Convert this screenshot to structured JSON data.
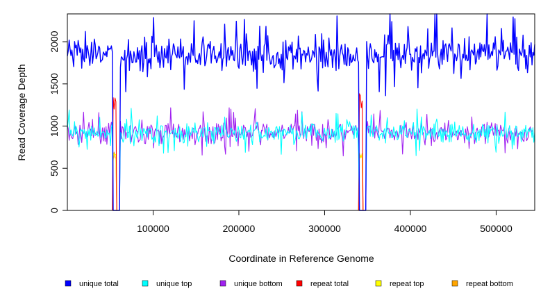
{
  "chart_data": {
    "type": "line",
    "xlabel": "Coordinate in Reference Genome",
    "ylabel": "Read Coverage Depth",
    "xlim": [
      0,
      545000
    ],
    "ylim": [
      0,
      2330
    ],
    "x_ticks": [
      100000,
      200000,
      300000,
      400000,
      500000
    ],
    "x_tick_labels": [
      "100000",
      "200000",
      "300000",
      "400000",
      "500000"
    ],
    "y_ticks": [
      0,
      500,
      1000,
      1500,
      2000
    ],
    "y_tick_labels": [
      "0",
      "500",
      "1000",
      "1500",
      "2000"
    ],
    "repeat_regions": [
      {
        "start": 53000,
        "end": 57000
      },
      {
        "start": 340000,
        "end": 344000
      }
    ],
    "gaps": [
      {
        "start": 57000,
        "end": 61000
      },
      {
        "start": 344000,
        "end": 348000
      }
    ],
    "series": [
      {
        "name": "unique total",
        "color": "#0000ff",
        "mean": 1850,
        "spread": 150
      },
      {
        "name": "unique top",
        "color": "#00ffff",
        "mean": 920,
        "spread": 90
      },
      {
        "name": "unique bottom",
        "color": "#a020f0",
        "mean": 920,
        "spread": 90
      },
      {
        "name": "repeat total",
        "color": "#ff0000",
        "peak": 1400
      },
      {
        "name": "repeat top",
        "color": "#ffff00",
        "peak": 700
      },
      {
        "name": "repeat bottom",
        "color": "#ffa500",
        "peak": 700
      }
    ],
    "legend": [
      {
        "label": "unique total",
        "color": "#0000ff"
      },
      {
        "label": "unique top",
        "color": "#00ffff"
      },
      {
        "label": "unique bottom",
        "color": "#a020f0"
      },
      {
        "label": "repeat total",
        "color": "#ff0000"
      },
      {
        "label": "repeat top",
        "color": "#ffff00"
      },
      {
        "label": "repeat bottom",
        "color": "#ffa500"
      }
    ]
  }
}
